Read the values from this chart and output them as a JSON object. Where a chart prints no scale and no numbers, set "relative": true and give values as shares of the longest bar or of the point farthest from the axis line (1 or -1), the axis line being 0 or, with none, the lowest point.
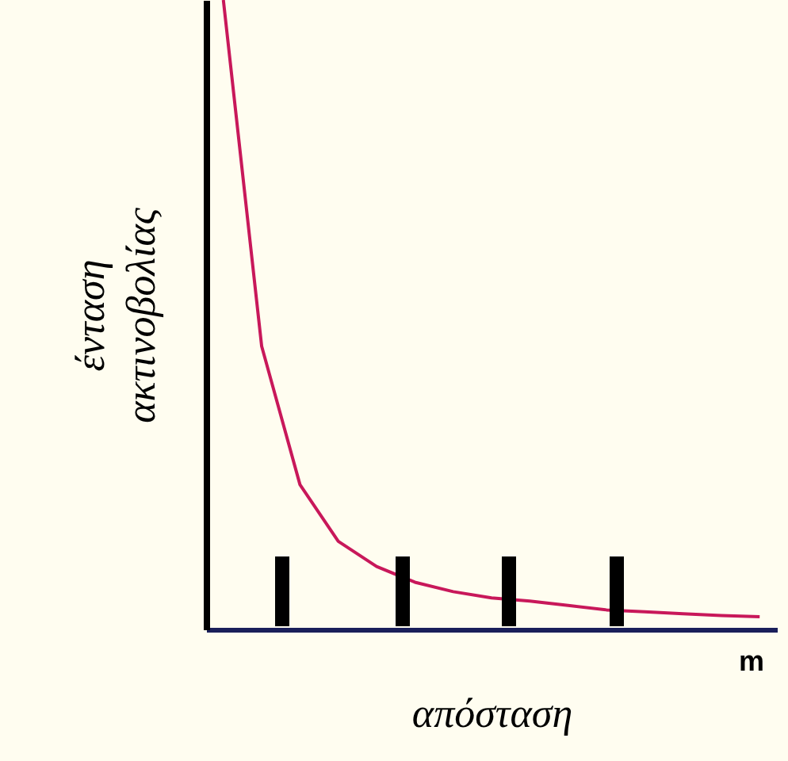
{
  "chart_data": {
    "type": "line",
    "relative": true,
    "xlabel": "απόσταση",
    "ylabel": "ένταση\nακτινοβολίας",
    "annotations": [
      "m"
    ],
    "categories": [
      null,
      null,
      null,
      null,
      null,
      null,
      null,
      null,
      null,
      null,
      null,
      null,
      null,
      null,
      null
    ],
    "tick_labels": false,
    "grid": false,
    "marker": "none",
    "line_style": "solid",
    "series": [
      {
        "color": "#c8185a",
        "values": [
          1.0,
          0.45,
          0.23,
          0.14,
          0.1,
          0.075,
          0.06,
          0.05,
          0.045,
          0.038,
          0.031,
          0.028,
          0.025,
          0.022,
          0.02
        ]
      }
    ]
  }
}
